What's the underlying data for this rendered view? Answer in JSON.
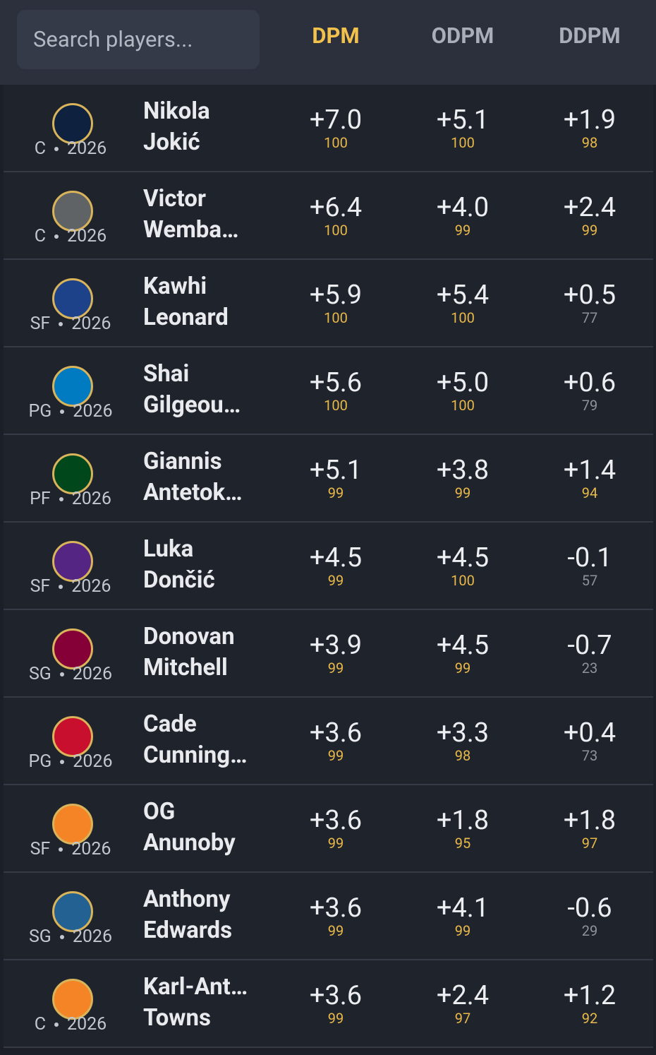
{
  "search": {
    "placeholder": "Search players..."
  },
  "headers": [
    "DPM",
    "ODPM",
    "DDPM"
  ],
  "rows": [
    {
      "pos": "C",
      "year": 2026,
      "first": "Nikola",
      "last": "Jokić",
      "stats": [
        [
          "+7.0",
          100
        ],
        [
          "+5.1",
          100
        ],
        [
          "+1.9",
          98
        ]
      ]
    },
    {
      "pos": "C",
      "year": 2026,
      "first": "Victor",
      "last": "Wemba…",
      "stats": [
        [
          "+6.4",
          100
        ],
        [
          "+4.0",
          99
        ],
        [
          "+2.4",
          99
        ]
      ]
    },
    {
      "pos": "SF",
      "year": 2026,
      "first": "Kawhi",
      "last": "Leonard",
      "stats": [
        [
          "+5.9",
          100
        ],
        [
          "+5.4",
          100
        ],
        [
          "+0.5",
          77
        ]
      ]
    },
    {
      "pos": "PG",
      "year": 2026,
      "first": "Shai",
      "last": "Gilgeou…",
      "stats": [
        [
          "+5.6",
          100
        ],
        [
          "+5.0",
          100
        ],
        [
          "+0.6",
          79
        ]
      ]
    },
    {
      "pos": "PF",
      "year": 2026,
      "first": "Giannis",
      "last": "Antetok…",
      "stats": [
        [
          "+5.1",
          99
        ],
        [
          "+3.8",
          99
        ],
        [
          "+1.4",
          94
        ]
      ]
    },
    {
      "pos": "SF",
      "year": 2026,
      "first": "Luka",
      "last": "Dončić",
      "stats": [
        [
          "+4.5",
          99
        ],
        [
          "+4.5",
          100
        ],
        [
          "-0.1",
          57
        ]
      ]
    },
    {
      "pos": "SG",
      "year": 2026,
      "first": "Donovan",
      "last": "Mitchell",
      "stats": [
        [
          "+3.9",
          99
        ],
        [
          "+4.5",
          99
        ],
        [
          "-0.7",
          23
        ]
      ]
    },
    {
      "pos": "PG",
      "year": 2026,
      "first": "Cade",
      "last": "Cunning…",
      "stats": [
        [
          "+3.6",
          99
        ],
        [
          "+3.3",
          98
        ],
        [
          "+0.4",
          73
        ]
      ]
    },
    {
      "pos": "SF",
      "year": 2026,
      "first": "OG",
      "last": "Anunoby",
      "stats": [
        [
          "+3.6",
          99
        ],
        [
          "+1.8",
          95
        ],
        [
          "+1.8",
          97
        ]
      ]
    },
    {
      "pos": "SG",
      "year": 2026,
      "first": "Anthony",
      "last": "Edwards",
      "stats": [
        [
          "+3.6",
          99
        ],
        [
          "+4.1",
          99
        ],
        [
          "-0.6",
          29
        ]
      ]
    },
    {
      "pos": "C",
      "year": 2026,
      "first": "Karl-Ant…",
      "last": "Towns",
      "stats": [
        [
          "+3.6",
          99
        ],
        [
          "+2.4",
          97
        ],
        [
          "+1.2",
          92
        ]
      ]
    }
  ]
}
